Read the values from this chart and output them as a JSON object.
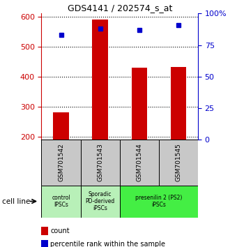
{
  "title": "GDS4141 / 202574_s_at",
  "samples": [
    "GSM701542",
    "GSM701543",
    "GSM701544",
    "GSM701545"
  ],
  "counts": [
    280,
    590,
    430,
    432
  ],
  "percentile_ranks": [
    83,
    88,
    87,
    91
  ],
  "ylim_left": [
    190,
    610
  ],
  "ylim_right": [
    0,
    100
  ],
  "yticks_left": [
    200,
    300,
    400,
    500,
    600
  ],
  "yticks_right": [
    0,
    25,
    50,
    75,
    100
  ],
  "bar_color": "#cc0000",
  "dot_color": "#0000cc",
  "bar_width": 0.4,
  "sample_box_color": "#c8c8c8",
  "group_box_colors": [
    "#b8f0b8",
    "#b8f0b8",
    "#44ee44"
  ],
  "legend_count_label": "count",
  "legend_pct_label": "percentile rank within the sample",
  "left_axis_color": "#cc0000",
  "right_axis_color": "#0000cc",
  "group_info": [
    [
      0,
      0,
      "control\nIPSCs"
    ],
    [
      1,
      1,
      "Sporadic\nPD-derived\niPSCs"
    ],
    [
      2,
      3,
      "presenilin 2 (PS2)\niPSCs"
    ]
  ]
}
